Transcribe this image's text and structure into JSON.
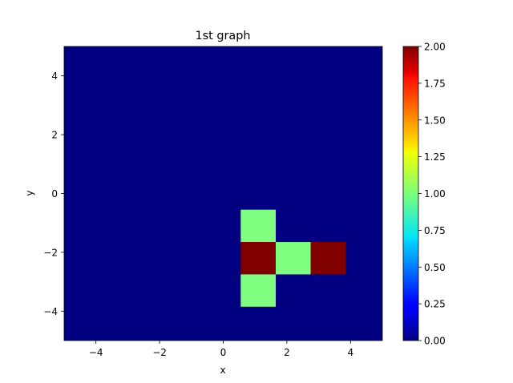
{
  "chart_data": {
    "type": "heatmap",
    "title": "1st graph",
    "xlabel": "x",
    "ylabel": "y",
    "xlim": [
      -5,
      5
    ],
    "ylim": [
      -5,
      5
    ],
    "x_ticks": [
      -4,
      -2,
      0,
      2,
      4
    ],
    "y_ticks": [
      -4,
      -2,
      0,
      2,
      4
    ],
    "x_tick_labels": [
      "−4",
      "−2",
      "0",
      "2",
      "4"
    ],
    "y_tick_labels": [
      "−4",
      "−2",
      "0",
      "2",
      "4"
    ],
    "grid": false,
    "colormap": "jet",
    "background_value": 0,
    "cells": [
      {
        "x0": 0.55,
        "x1": 1.65,
        "y0": -1.65,
        "y1": -0.55,
        "value": 1
      },
      {
        "x0": 0.55,
        "x1": 1.65,
        "y0": -2.75,
        "y1": -1.65,
        "value": 2
      },
      {
        "x0": 1.65,
        "x1": 2.75,
        "y0": -2.75,
        "y1": -1.65,
        "value": 1
      },
      {
        "x0": 2.75,
        "x1": 3.85,
        "y0": -2.75,
        "y1": -1.65,
        "value": 2
      },
      {
        "x0": 0.55,
        "x1": 1.65,
        "y0": -3.85,
        "y1": -2.75,
        "value": 1
      }
    ],
    "colorbar": {
      "min": 0,
      "max": 2,
      "ticks": [
        0,
        0.25,
        0.5,
        0.75,
        1,
        1.25,
        1.5,
        1.75,
        2
      ],
      "tick_labels": [
        "0.00",
        "0.25",
        "0.50",
        "0.75",
        "1.00",
        "1.25",
        "1.50",
        "1.75",
        "2.00"
      ]
    }
  }
}
